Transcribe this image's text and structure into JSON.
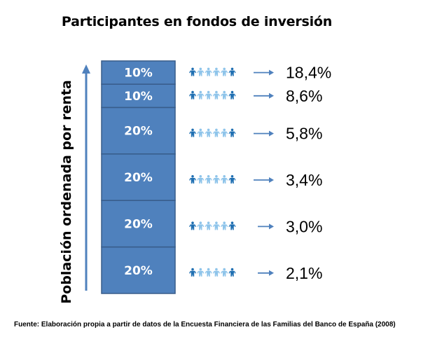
{
  "title": "Participantes en fondos de inversión",
  "source": "Fuente: Elaboración propia  a partir de datos de la Encuesta Financiera de las Familias del Banco de España  (2008)",
  "colors": {
    "bar": "#4f81bd",
    "bar_border": "#385d8a",
    "arrow": "#4f81bd",
    "people_dark": "#1f6fb2",
    "people_light": "#8ec4ea"
  },
  "chart_data": {
    "type": "bar",
    "orientation": "stacked-vertical",
    "ylabel": "Población ordenada por renta",
    "icons": "people-row",
    "segments": [
      {
        "label": "20%",
        "share": 20,
        "value": 2.1,
        "value_label": "2,1%"
      },
      {
        "label": "20%",
        "share": 20,
        "value": 3.0,
        "value_label": "3,0%"
      },
      {
        "label": "20%",
        "share": 20,
        "value": 3.4,
        "value_label": "3,4%"
      },
      {
        "label": "20%",
        "share": 20,
        "value": 5.8,
        "value_label": "5,8%"
      },
      {
        "label": "10%",
        "share": 10,
        "value": 8.6,
        "value_label": "8,6%"
      },
      {
        "label": "10%",
        "share": 10,
        "value": 18.4,
        "value_label": "18,4%"
      }
    ]
  }
}
